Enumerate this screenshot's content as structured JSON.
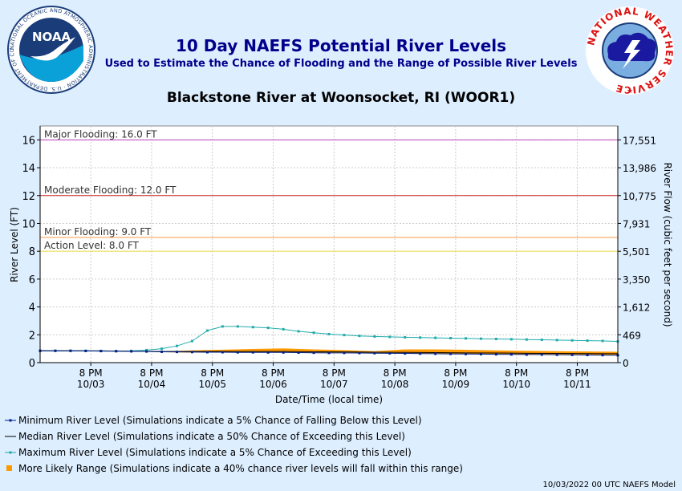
{
  "header": {
    "title": "10 Day NAEFS Potential River Levels",
    "subtitle": "Used to Estimate the Chance of Flooding and the Range of Possible River Levels",
    "station": "Blackstone River at Woonsocket, RI (WOOR1)",
    "noaa_logo_text": "NOAA",
    "noaa_ring_text": "NATIONAL OCEANIC AND ATMOSPHERIC ADMINISTRATION · U.S. DEPARTMENT OF COMMERCE",
    "nws_ring_text": "NATIONAL WEATHER SERVICE"
  },
  "footer": {
    "model_run": "10/03/2022 00 UTC NAEFS Model"
  },
  "colors": {
    "background": "#ddeeff",
    "major": "#bb44bb",
    "moderate": "#cc2222",
    "minor": "#ff9944",
    "action": "#eedd44",
    "maximum": "#22aaaa",
    "minimum": "#002288",
    "median": "#000000",
    "range": "#ff9900"
  },
  "chart_data": {
    "type": "line",
    "xlabel": "Date/Time (local time)",
    "ylabel": "River Level (FT)",
    "y2label": "River Flow (cubic feet per second)",
    "ylim": [
      0,
      17
    ],
    "yticks": [
      0,
      2,
      4,
      6,
      8,
      10,
      12,
      14,
      16
    ],
    "y2ticks": [
      {
        "level": 16,
        "label": "17,551"
      },
      {
        "level": 14,
        "label": "13,986"
      },
      {
        "level": 12,
        "label": "10,775"
      },
      {
        "level": 10,
        "label": "7,931"
      },
      {
        "level": 8,
        "label": "5,501"
      },
      {
        "level": 6,
        "label": "3,350"
      },
      {
        "level": 4,
        "label": "1,612"
      },
      {
        "level": 2,
        "label": "469"
      },
      {
        "level": 0,
        "label": "0"
      }
    ],
    "xlim": [
      0,
      228
    ],
    "xticks": [
      {
        "h": 20,
        "time": "8 PM",
        "date": "10/03"
      },
      {
        "h": 44,
        "time": "8 PM",
        "date": "10/04"
      },
      {
        "h": 68,
        "time": "8 PM",
        "date": "10/05"
      },
      {
        "h": 92,
        "time": "8 PM",
        "date": "10/06"
      },
      {
        "h": 116,
        "time": "8 PM",
        "date": "10/07"
      },
      {
        "h": 140,
        "time": "8 PM",
        "date": "10/08"
      },
      {
        "h": 164,
        "time": "8 PM",
        "date": "10/09"
      },
      {
        "h": 188,
        "time": "8 PM",
        "date": "10/10"
      },
      {
        "h": 212,
        "time": "8 PM",
        "date": "10/11"
      }
    ],
    "thresholds": [
      {
        "label": "Major Flooding: 16.0 FT",
        "value": 16.0,
        "color": "#bb44bb"
      },
      {
        "label": "Moderate Flooding: 12.0 FT",
        "value": 12.0,
        "color": "#cc2222"
      },
      {
        "label": "Minor Flooding: 9.0 FT",
        "value": 9.0,
        "color": "#ff9944"
      },
      {
        "label": "Action Level: 8.0 FT",
        "value": 8.0,
        "color": "#eedd44"
      }
    ],
    "series": [
      {
        "key": "range",
        "x": [
          0,
          12,
          24,
          36,
          48,
          60,
          72,
          84,
          96,
          108,
          120,
          132,
          144,
          156,
          168,
          180,
          192,
          204,
          216,
          228
        ],
        "low": [
          0.85,
          0.84,
          0.82,
          0.8,
          0.75,
          0.72,
          0.72,
          0.72,
          0.72,
          0.7,
          0.7,
          0.68,
          0.66,
          0.64,
          0.62,
          0.62,
          0.6,
          0.58,
          0.56,
          0.55
        ],
        "high": [
          0.85,
          0.85,
          0.84,
          0.82,
          0.8,
          0.88,
          0.93,
          0.98,
          1.02,
          0.95,
          0.9,
          0.82,
          0.95,
          0.95,
          0.92,
          0.88,
          0.85,
          0.82,
          0.8,
          0.78
        ]
      },
      {
        "key": "maximum",
        "x": [
          0,
          6,
          12,
          18,
          24,
          30,
          36,
          42,
          48,
          54,
          60,
          66,
          72,
          78,
          84,
          90,
          96,
          102,
          108,
          114,
          120,
          126,
          132,
          138,
          144,
          150,
          156,
          162,
          168,
          174,
          180,
          186,
          192,
          198,
          204,
          210,
          216,
          222,
          228
        ],
        "values": [
          0.85,
          0.85,
          0.85,
          0.85,
          0.84,
          0.83,
          0.84,
          0.9,
          1.0,
          1.2,
          1.55,
          2.3,
          2.6,
          2.6,
          2.55,
          2.5,
          2.4,
          2.25,
          2.15,
          2.05,
          1.98,
          1.92,
          1.88,
          1.85,
          1.82,
          1.8,
          1.78,
          1.76,
          1.74,
          1.72,
          1.7,
          1.68,
          1.66,
          1.64,
          1.62,
          1.6,
          1.58,
          1.56,
          1.52
        ]
      },
      {
        "key": "median",
        "x": [
          0,
          12,
          24,
          36,
          48,
          60,
          72,
          84,
          96,
          108,
          120,
          132,
          144,
          156,
          168,
          180,
          192,
          204,
          216,
          228
        ],
        "values": [
          0.85,
          0.85,
          0.84,
          0.82,
          0.8,
          0.8,
          0.8,
          0.8,
          0.8,
          0.78,
          0.77,
          0.75,
          0.74,
          0.72,
          0.7,
          0.69,
          0.67,
          0.66,
          0.65,
          0.64
        ]
      },
      {
        "key": "minimum",
        "x": [
          0,
          6,
          12,
          18,
          24,
          30,
          36,
          42,
          48,
          54,
          60,
          66,
          72,
          78,
          84,
          90,
          96,
          102,
          108,
          114,
          120,
          126,
          132,
          138,
          144,
          150,
          156,
          162,
          168,
          174,
          180,
          186,
          192,
          198,
          204,
          210,
          216,
          222,
          228
        ],
        "values": [
          0.85,
          0.85,
          0.85,
          0.84,
          0.83,
          0.82,
          0.81,
          0.8,
          0.78,
          0.77,
          0.76,
          0.75,
          0.75,
          0.74,
          0.74,
          0.73,
          0.73,
          0.72,
          0.71,
          0.7,
          0.7,
          0.69,
          0.68,
          0.67,
          0.66,
          0.65,
          0.64,
          0.63,
          0.62,
          0.61,
          0.6,
          0.59,
          0.58,
          0.58,
          0.57,
          0.56,
          0.55,
          0.54,
          0.53
        ]
      }
    ],
    "legend": {
      "placement": "bottom-left",
      "items": [
        {
          "key": "minimum",
          "label": "Minimum River Level (Simulations indicate a 5% Chance of Falling Below this Level)"
        },
        {
          "key": "median",
          "label": "Median River Level (Simulations indicate a 50% Chance of Exceeding this Level)"
        },
        {
          "key": "maximum",
          "label": "Maximum River Level (Simulations indicate a 5% Chance of Exceeding this Level)"
        },
        {
          "key": "range",
          "label": "More Likely Range (Simulations indicate a 40% chance river levels will fall within this range)"
        }
      ]
    },
    "grid": true
  }
}
